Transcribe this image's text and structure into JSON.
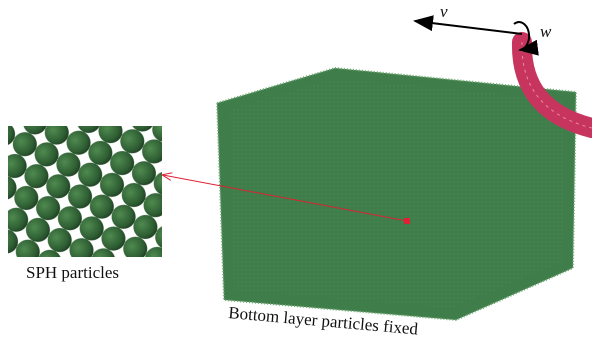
{
  "labels": {
    "velocity": "v",
    "angular_velocity": "w",
    "inset": "SPH particles",
    "base": "Bottom layer particles fixed"
  }
}
